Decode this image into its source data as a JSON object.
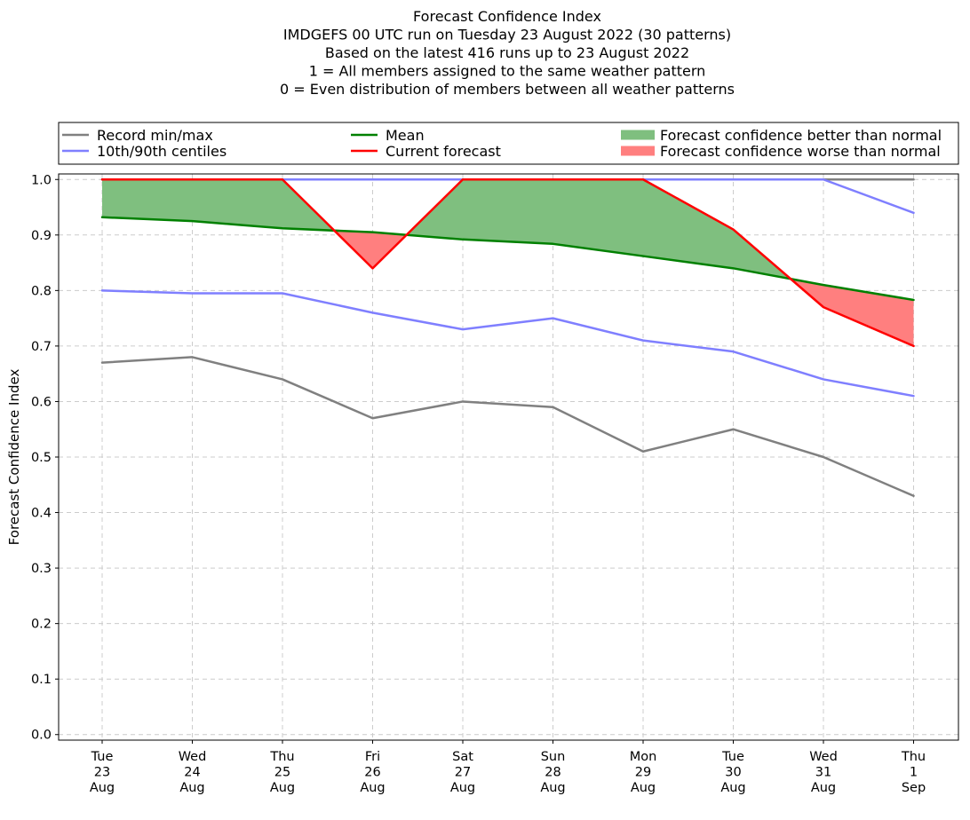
{
  "chart_data": {
    "type": "line",
    "title_lines": [
      "Forecast Confidence Index",
      "IMDGEFS 00 UTC run on Tuesday 23 August 2022 (30 patterns)",
      "Based on the latest 416 runs up to 23 August 2022",
      "1 = All members assigned to the same weather pattern",
      "0 = Even distribution of members between all weather patterns"
    ],
    "ylabel": "Forecast Confidence Index",
    "xlabel": "",
    "ylim": [
      -0.01,
      1.01
    ],
    "yticks": [
      "0.0",
      "0.1",
      "0.2",
      "0.3",
      "0.4",
      "0.5",
      "0.6",
      "0.7",
      "0.8",
      "0.9",
      "1.0"
    ],
    "categories": [
      [
        "Tue",
        "23",
        "Aug"
      ],
      [
        "Wed",
        "24",
        "Aug"
      ],
      [
        "Thu",
        "25",
        "Aug"
      ],
      [
        "Fri",
        "26",
        "Aug"
      ],
      [
        "Sat",
        "27",
        "Aug"
      ],
      [
        "Sun",
        "28",
        "Aug"
      ],
      [
        "Mon",
        "29",
        "Aug"
      ],
      [
        "Tue",
        "30",
        "Aug"
      ],
      [
        "Wed",
        "31",
        "Aug"
      ],
      [
        "Thu",
        "1",
        "Sep"
      ]
    ],
    "grid": true,
    "legend_placement": "top, above plot, three columns",
    "series": [
      {
        "name": "Record min/max",
        "role": "record_max",
        "color": "#808080",
        "values": [
          1.0,
          1.0,
          1.0,
          1.0,
          1.0,
          1.0,
          1.0,
          1.0,
          1.0,
          1.0
        ]
      },
      {
        "role": "record_min",
        "color": "#808080",
        "values": [
          0.67,
          0.68,
          0.64,
          0.57,
          0.6,
          0.59,
          0.51,
          0.55,
          0.5,
          0.43
        ]
      },
      {
        "name": "10th/90th centiles",
        "role": "p90",
        "color": "#7f7fff",
        "values": [
          1.0,
          1.0,
          1.0,
          1.0,
          1.0,
          1.0,
          1.0,
          1.0,
          1.0,
          0.94
        ]
      },
      {
        "role": "p10",
        "color": "#7f7fff",
        "values": [
          0.8,
          0.795,
          0.795,
          0.76,
          0.73,
          0.75,
          0.71,
          0.69,
          0.64,
          0.61
        ]
      },
      {
        "name": "Mean",
        "role": "mean",
        "color": "#008000",
        "values": [
          0.932,
          0.925,
          0.912,
          0.905,
          0.892,
          0.884,
          0.862,
          0.84,
          0.81,
          0.783
        ]
      },
      {
        "name": "Current forecast",
        "role": "current",
        "color": "#ff0000",
        "values": [
          1.0,
          1.0,
          1.0,
          0.84,
          1.0,
          1.0,
          1.0,
          0.91,
          0.77,
          0.7
        ]
      }
    ],
    "fill_legend": [
      {
        "name": "Forecast confidence better than normal",
        "color": "#7fbf7f"
      },
      {
        "name": "Forecast confidence worse than normal",
        "color": "#ff7f7f"
      }
    ],
    "colors": {
      "record": "#808080",
      "centiles": "#7f7fff",
      "mean": "#008000",
      "current": "#ff0000",
      "better_fill": "#7fbf7f",
      "worse_fill": "#ff7f7f",
      "grid": "#cccccc"
    }
  }
}
